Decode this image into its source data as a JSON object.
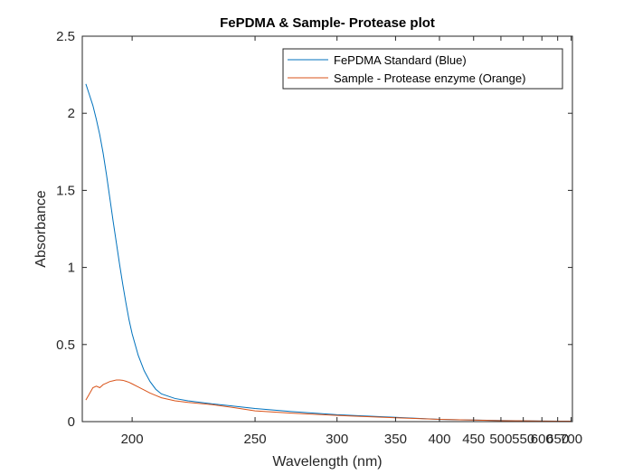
{
  "chart_data": {
    "type": "line",
    "title": "FePDMA & Sample- Protease plot",
    "xlabel": "Wavelength (nm)",
    "ylabel": "Absorbance",
    "x_scale": "reciprocal",
    "xlim": [
      185,
      705
    ],
    "ylim": [
      0,
      2.5
    ],
    "x_ticks": [
      200,
      250,
      300,
      350,
      400,
      450,
      500,
      550,
      600,
      650,
      700
    ],
    "y_ticks": [
      0,
      0.5,
      1,
      1.5,
      2,
      2.5
    ],
    "grid": false,
    "legend_position": "top-right",
    "series": [
      {
        "name": "FePDMA Standard (Blue)",
        "color": "#0072BD",
        "points": [
          [
            186,
            2.19
          ],
          [
            187,
            2.12
          ],
          [
            188,
            2.05
          ],
          [
            189,
            1.96
          ],
          [
            190,
            1.86
          ],
          [
            191,
            1.74
          ],
          [
            192,
            1.6
          ],
          [
            193,
            1.45
          ],
          [
            194,
            1.3
          ],
          [
            195,
            1.16
          ],
          [
            196,
            1.02
          ],
          [
            197,
            0.89
          ],
          [
            198,
            0.77
          ],
          [
            199,
            0.66
          ],
          [
            200,
            0.57
          ],
          [
            202,
            0.43
          ],
          [
            204,
            0.33
          ],
          [
            206,
            0.26
          ],
          [
            208,
            0.21
          ],
          [
            210,
            0.18
          ],
          [
            215,
            0.15
          ],
          [
            220,
            0.135
          ],
          [
            230,
            0.115
          ],
          [
            240,
            0.1
          ],
          [
            250,
            0.085
          ],
          [
            270,
            0.065
          ],
          [
            300,
            0.045
          ],
          [
            350,
            0.028
          ],
          [
            400,
            0.015
          ],
          [
            450,
            0.01
          ],
          [
            500,
            0.007
          ],
          [
            550,
            0.005
          ],
          [
            600,
            0.004
          ],
          [
            650,
            0.003
          ],
          [
            700,
            0.003
          ]
        ]
      },
      {
        "name": "Sample - Protease enzyme (Orange)",
        "color": "#D95319",
        "points": [
          [
            186,
            0.14
          ],
          [
            187,
            0.18
          ],
          [
            188,
            0.22
          ],
          [
            189,
            0.23
          ],
          [
            190,
            0.22
          ],
          [
            191,
            0.24
          ],
          [
            192,
            0.25
          ],
          [
            193,
            0.26
          ],
          [
            194,
            0.265
          ],
          [
            195,
            0.27
          ],
          [
            196,
            0.27
          ],
          [
            197,
            0.268
          ],
          [
            198,
            0.262
          ],
          [
            199,
            0.255
          ],
          [
            200,
            0.245
          ],
          [
            202,
            0.225
          ],
          [
            204,
            0.205
          ],
          [
            206,
            0.185
          ],
          [
            208,
            0.17
          ],
          [
            210,
            0.155
          ],
          [
            215,
            0.135
          ],
          [
            220,
            0.125
          ],
          [
            230,
            0.11
          ],
          [
            240,
            0.09
          ],
          [
            250,
            0.07
          ],
          [
            270,
            0.055
          ],
          [
            300,
            0.04
          ],
          [
            350,
            0.025
          ],
          [
            400,
            0.015
          ],
          [
            450,
            0.01
          ],
          [
            500,
            0.006
          ],
          [
            550,
            0.005
          ],
          [
            600,
            0.004
          ],
          [
            650,
            0.003
          ],
          [
            700,
            0.003
          ]
        ]
      }
    ]
  }
}
